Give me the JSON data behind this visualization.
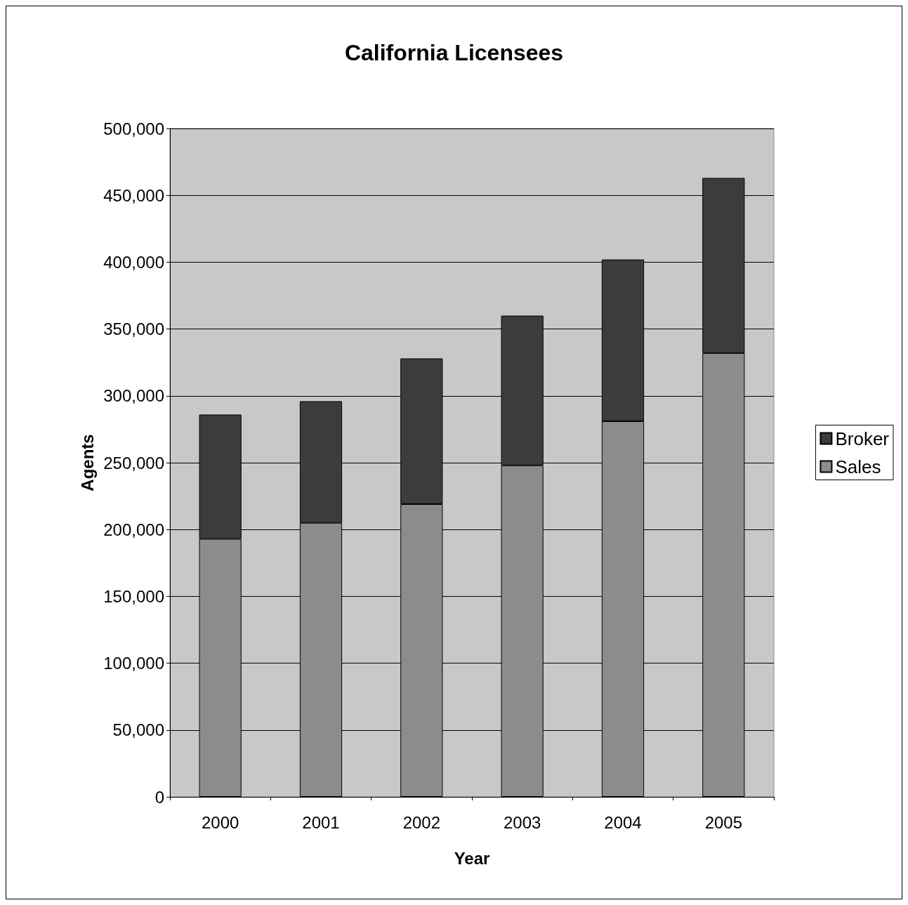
{
  "chart_data": {
    "type": "bar",
    "title": "California Licensees",
    "xlabel": "Year",
    "ylabel": "Agents",
    "categories": [
      "2000",
      "2001",
      "2002",
      "2003",
      "2004",
      "2005"
    ],
    "stacked": true,
    "series": [
      {
        "name": "Sales",
        "color": "#8c8c8c",
        "values": [
          193000,
          205000,
          219000,
          248000,
          281000,
          332000
        ]
      },
      {
        "name": "Broker",
        "color": "#3c3c3c",
        "values": [
          93000,
          91000,
          109000,
          112000,
          121000,
          131000
        ]
      }
    ],
    "ylim": [
      0,
      500000
    ],
    "yticks": [
      {
        "value": 0,
        "label": "0"
      },
      {
        "value": 50000,
        "label": "50,000"
      },
      {
        "value": 100000,
        "label": "100,000"
      },
      {
        "value": 150000,
        "label": "150,000"
      },
      {
        "value": 200000,
        "label": "200,000"
      },
      {
        "value": 250000,
        "label": "250,000"
      },
      {
        "value": 300000,
        "label": "300,000"
      },
      {
        "value": 350000,
        "label": "350,000"
      },
      {
        "value": 400000,
        "label": "400,000"
      },
      {
        "value": 450000,
        "label": "450,000"
      },
      {
        "value": 500000,
        "label": "500,000"
      }
    ],
    "grid": "y",
    "legend": "right"
  }
}
